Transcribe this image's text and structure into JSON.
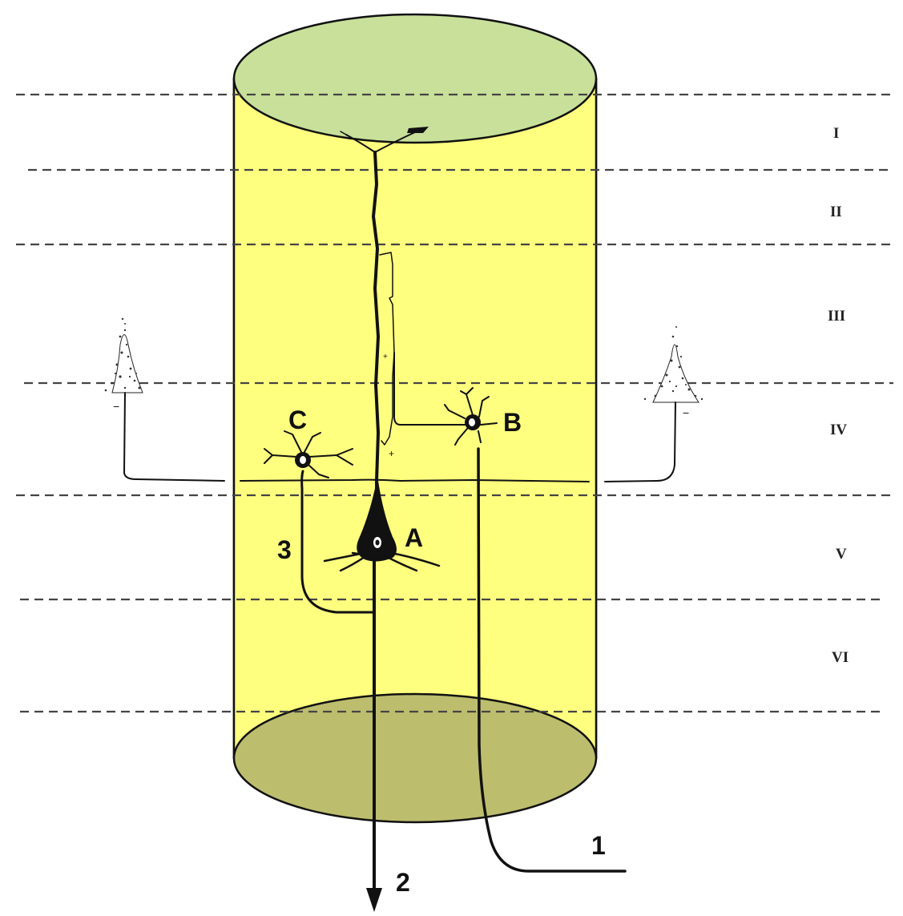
{
  "layers": [
    {
      "id": "I",
      "label": "I"
    },
    {
      "id": "II",
      "label": "II"
    },
    {
      "id": "III",
      "label": "III"
    },
    {
      "id": "IV",
      "label": "IV"
    },
    {
      "id": "V",
      "label": "V"
    },
    {
      "id": "VI",
      "label": "VI"
    }
  ],
  "neurons": {
    "A": {
      "label": "A"
    },
    "B": {
      "label": "B"
    },
    "C": {
      "label": "C"
    }
  },
  "pathways": {
    "input": {
      "label": "1"
    },
    "output": {
      "label": "2"
    },
    "collateral": {
      "label": "3"
    }
  },
  "colors": {
    "cylinder_body": "#ffff7f",
    "cylinder_top": "#c8e09a",
    "cylinder_bottom": "#bdbd6e",
    "ink": "#111111",
    "layer_lines": "#444444"
  }
}
